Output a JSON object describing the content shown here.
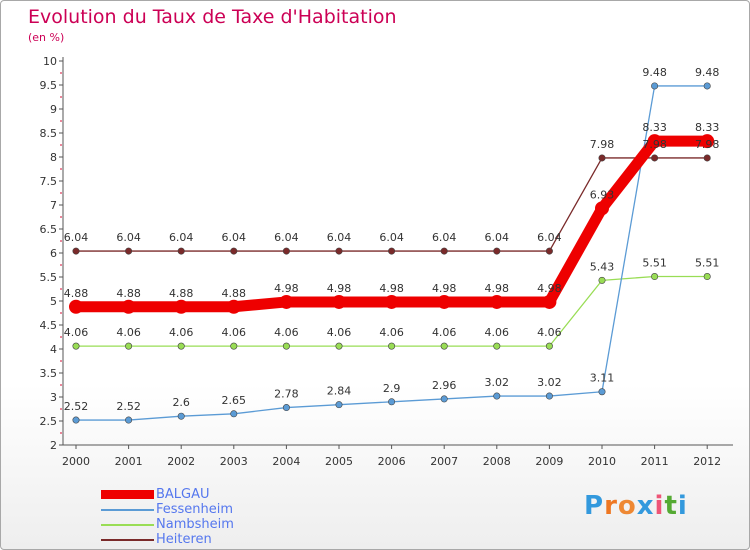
{
  "header": {
    "title": "Evolution du Taux de Taxe d'Habitation",
    "unit": "(en %)"
  },
  "logo": {
    "text": "Proxiti"
  },
  "chart_data": {
    "type": "line",
    "title": "Evolution du Taux de Taxe d'Habitation",
    "ylabel": "(en %)",
    "xlabel": "",
    "ylim": [
      2,
      10
    ],
    "yticks": [
      "2",
      "2.5",
      "3",
      "3.5",
      "4",
      "4.5",
      "5",
      "5.5",
      "6",
      "6.5",
      "7",
      "7.5",
      "8",
      "8.5",
      "9",
      "9.5",
      "10"
    ],
    "grid": false,
    "legend_position": "bottom-left",
    "categories": [
      "2000",
      "2001",
      "2002",
      "2003",
      "2004",
      "2005",
      "2006",
      "2007",
      "2008",
      "2009",
      "2010",
      "2011",
      "2012"
    ],
    "series": [
      {
        "name": "BALGAU",
        "color": "#ee0000",
        "values": [
          4.88,
          4.88,
          4.88,
          4.88,
          4.98,
          4.98,
          4.98,
          4.98,
          4.98,
          4.98,
          6.93,
          8.33,
          8.33
        ],
        "labels": [
          "4.88",
          "4.88",
          "4.88",
          "4.88",
          "4.98",
          "4.98",
          "4.98",
          "4.98",
          "4.98",
          "4.98",
          "6.93",
          "8.33",
          "8.33"
        ]
      },
      {
        "name": "Fessenheim",
        "color": "#5b9bd5",
        "values": [
          2.52,
          2.52,
          2.6,
          2.65,
          2.78,
          2.84,
          2.9,
          2.96,
          3.02,
          3.02,
          3.11,
          9.48,
          9.48
        ],
        "labels": [
          "2.52",
          "2.52",
          "2.6",
          "2.65",
          "2.78",
          "2.84",
          "2.9",
          "2.96",
          "3.02",
          "3.02",
          "3.11",
          "9.48",
          "9.48"
        ]
      },
      {
        "name": "Nambsheim",
        "color": "#99dd55",
        "values": [
          4.06,
          4.06,
          4.06,
          4.06,
          4.06,
          4.06,
          4.06,
          4.06,
          4.06,
          4.06,
          5.43,
          5.51,
          5.51
        ],
        "labels": [
          "4.06",
          "4.06",
          "4.06",
          "4.06",
          "4.06",
          "4.06",
          "4.06",
          "4.06",
          "4.06",
          "4.06",
          "5.43",
          "5.51",
          "5.51"
        ]
      },
      {
        "name": "Heiteren",
        "color": "#7a2a2a",
        "values": [
          6.04,
          6.04,
          6.04,
          6.04,
          6.04,
          6.04,
          6.04,
          6.04,
          6.04,
          6.04,
          7.98,
          7.98,
          7.98
        ],
        "labels": [
          "6.04",
          "6.04",
          "6.04",
          "6.04",
          "6.04",
          "6.04",
          "6.04",
          "6.04",
          "6.04",
          "6.04",
          "7.98",
          "7.98",
          "7.98"
        ]
      }
    ]
  }
}
